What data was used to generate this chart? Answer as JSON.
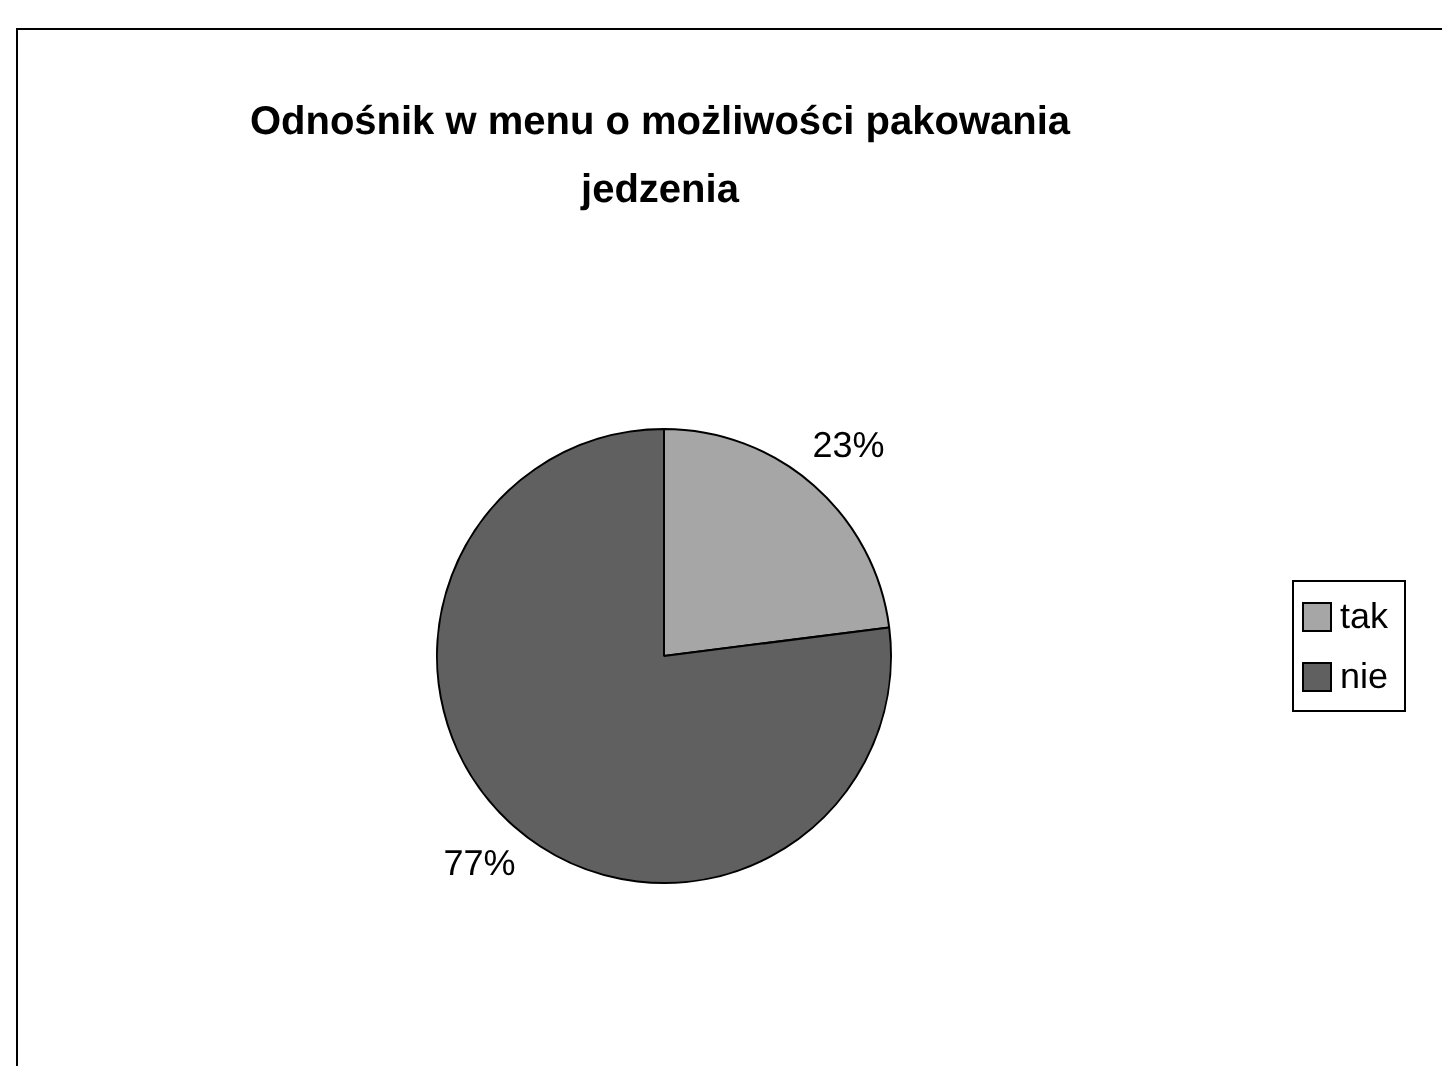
{
  "chart_data": {
    "type": "pie",
    "title": "Odnośnik w menu o możliwości pakowania jedzenia",
    "categories": [
      "tak",
      "nie"
    ],
    "values": [
      23,
      77
    ],
    "colors": [
      "#a6a6a6",
      "#606060"
    ],
    "value_labels": [
      "23%",
      "77%"
    ],
    "legend": "right"
  }
}
